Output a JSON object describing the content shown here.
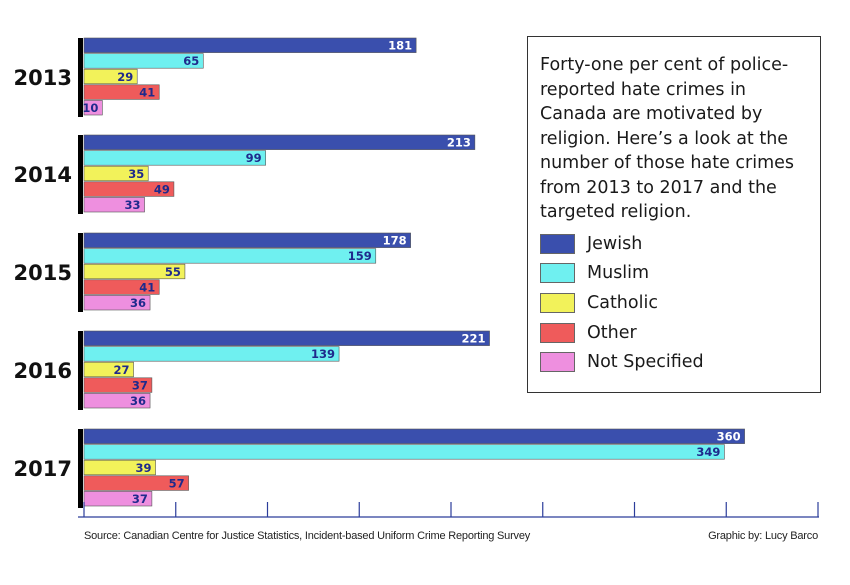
{
  "chart_data": {
    "type": "bar",
    "orientation": "horizontal",
    "categories": [
      "2013",
      "2014",
      "2015",
      "2016",
      "2017"
    ],
    "series": [
      {
        "name": "Jewish",
        "color": "#3a4fad",
        "values": [
          181,
          213,
          178,
          221,
          360
        ]
      },
      {
        "name": "Muslim",
        "color": "#6ff0f0",
        "values": [
          65,
          99,
          159,
          139,
          349
        ]
      },
      {
        "name": "Catholic",
        "color": "#f2f25a",
        "values": [
          29,
          35,
          55,
          27,
          39
        ]
      },
      {
        "name": "Other",
        "color": "#ef5b5b",
        "values": [
          41,
          49,
          41,
          37,
          57
        ]
      },
      {
        "name": "Not Specified",
        "color": "#ee8fdf",
        "values": [
          10,
          33,
          36,
          36,
          37
        ]
      }
    ],
    "xlim": [
      0,
      400
    ],
    "x_ticks": [
      0,
      50,
      100,
      150,
      200,
      250,
      300,
      350,
      400
    ],
    "grid": false,
    "legend_position": "top-right"
  },
  "legend": {
    "description": "Forty-one per cent of police-reported hate crimes in Canada are motivated by religion. Here’s a look at the number of those hate crimes from 2013 to 2017 and the targeted religion."
  },
  "footer": {
    "source": "Source: Canadian Centre for Justice Statistics, Incident-based Uniform Crime Reporting Survey",
    "credit": "Graphic by: Lucy Barco"
  }
}
